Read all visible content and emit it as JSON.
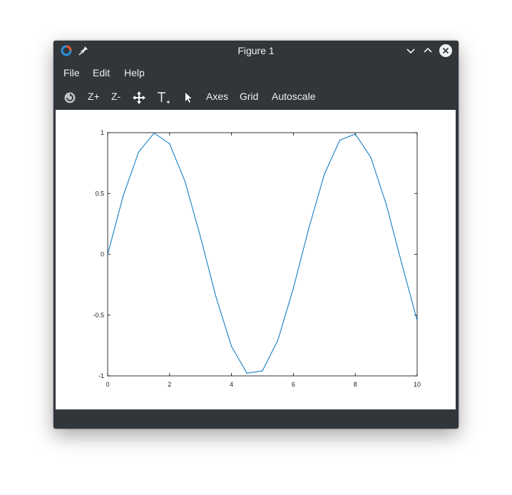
{
  "window": {
    "title": "Figure 1"
  },
  "titlebar": {
    "app_icon": "octave-logo-icon",
    "pin_icon": "pin-icon",
    "buttons": [
      "minimize-chevron-icon",
      "maximize-chevron-icon",
      "close-icon"
    ]
  },
  "menu": {
    "file": "File",
    "edit": "Edit",
    "help": "Help"
  },
  "toolbar": {
    "rotate_icon": "rotate-icon",
    "zoom_in": "Z+",
    "zoom_out": "Z-",
    "pan_icon": "pan-move-icon",
    "text_icon": "insert-text-icon",
    "select_icon": "pointer-icon",
    "axes": "Axes",
    "grid": "Grid",
    "autoscale": "Autoscale"
  },
  "colors": {
    "window_bg": "#31363b",
    "text": "#eff0f1",
    "line": "#0072bd"
  },
  "chart_data": {
    "type": "line",
    "title": "",
    "xlabel": "",
    "ylabel": "",
    "xlim": [
      0,
      10
    ],
    "ylim": [
      -1,
      1
    ],
    "grid": false,
    "x_ticks": [
      "0",
      "2",
      "4",
      "6",
      "8",
      "10"
    ],
    "y_ticks": [
      "1",
      "0.5",
      "0",
      "-0.5",
      "-1"
    ],
    "series": [
      {
        "x": [
          0,
          0.5,
          1,
          1.5,
          2,
          2.5,
          3,
          3.5,
          4,
          4.5,
          5,
          5.5,
          6,
          6.5,
          7,
          7.5,
          8,
          8.5,
          9,
          9.5,
          10
        ],
        "values": [
          0,
          0.479,
          0.841,
          0.997,
          0.909,
          0.598,
          0.141,
          -0.351,
          -0.757,
          -0.978,
          -0.959,
          -0.706,
          -0.279,
          0.215,
          0.657,
          0.938,
          0.989,
          0.798,
          0.412,
          -0.075,
          -0.544
        ],
        "color": "#0072bd"
      }
    ]
  }
}
